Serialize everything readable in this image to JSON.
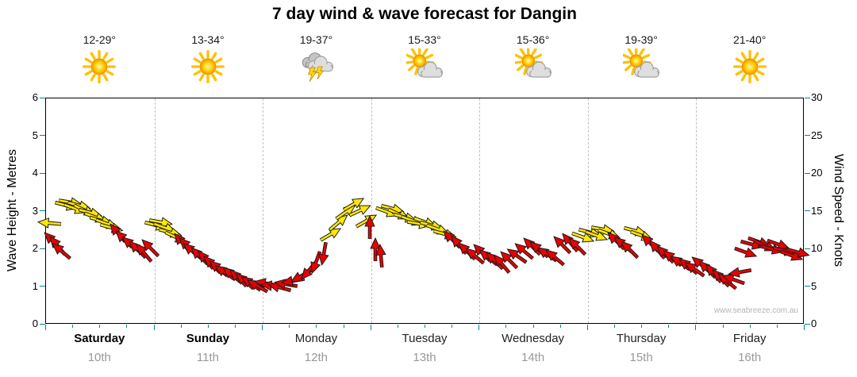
{
  "title": "7 day wind & wave forecast for Dangin",
  "watermark": "www.seabreeze.com.au",
  "days": [
    {
      "name": "Saturday",
      "date": "10th",
      "temp": "12-29°",
      "icon": "sunny",
      "bold": true
    },
    {
      "name": "Sunday",
      "date": "11th",
      "temp": "13-34°",
      "icon": "sunny",
      "bold": true
    },
    {
      "name": "Monday",
      "date": "12th",
      "temp": "19-37°",
      "icon": "thunderstorm",
      "bold": false
    },
    {
      "name": "Tuesday",
      "date": "13th",
      "temp": "15-33°",
      "icon": "partly-cloudy",
      "bold": false
    },
    {
      "name": "Wednesday",
      "date": "14th",
      "temp": "15-36°",
      "icon": "partly-cloudy",
      "bold": false
    },
    {
      "name": "Thursday",
      "date": "15th",
      "temp": "19-39°",
      "icon": "partly-cloudy",
      "bold": false
    },
    {
      "name": "Friday",
      "date": "16th",
      "temp": "21-40°",
      "icon": "sunny",
      "bold": false
    }
  ],
  "chart_data": {
    "type": "scatter",
    "subtype": "wind-direction-arrows",
    "title": "7 day wind & wave forecast for Dangin",
    "x_axis": {
      "days": 7,
      "labels": [
        "Saturday",
        "Sunday",
        "Monday",
        "Tuesday",
        "Wednesday",
        "Thursday",
        "Friday"
      ],
      "dates": [
        "10th",
        "11th",
        "12th",
        "13th",
        "14th",
        "15th",
        "16th"
      ]
    },
    "y_left": {
      "label": "Wave Height - Metres",
      "range": [
        0,
        6
      ],
      "ticks": [
        0,
        1,
        2,
        3,
        4,
        5,
        6
      ]
    },
    "y_right": {
      "label": "Wind Speed - Knots",
      "range": [
        0,
        30
      ],
      "ticks": [
        0,
        5,
        10,
        15,
        20,
        25,
        30
      ]
    },
    "grid": "dashed vertical day separators",
    "arrow_colors": {
      "y": "#ffe800",
      "r": "#e80000"
    },
    "arrow_fields": [
      "day_position_0to7",
      "wind_speed_knots",
      "direction_deg_cw_from_east",
      "color_key"
    ],
    "arrows": [
      [
        0.03,
        13.5,
        185,
        "y"
      ],
      [
        0.06,
        11.2,
        225,
        "r"
      ],
      [
        0.1,
        10.5,
        230,
        "r"
      ],
      [
        0.14,
        9.8,
        220,
        "r"
      ],
      [
        0.19,
        15.8,
        15,
        "y"
      ],
      [
        0.23,
        16.2,
        10,
        "y"
      ],
      [
        0.27,
        15.4,
        20,
        "y"
      ],
      [
        0.31,
        15.8,
        15,
        "y"
      ],
      [
        0.36,
        15.2,
        25,
        "y"
      ],
      [
        0.41,
        14.8,
        15,
        "y"
      ],
      [
        0.46,
        14.2,
        20,
        "y"
      ],
      [
        0.51,
        13.8,
        15,
        "y"
      ],
      [
        0.56,
        13.4,
        20,
        "y"
      ],
      [
        0.61,
        12.8,
        15,
        "y"
      ],
      [
        0.66,
        12.2,
        230,
        "r"
      ],
      [
        0.72,
        11.4,
        225,
        "r"
      ],
      [
        0.78,
        10.6,
        220,
        "r"
      ],
      [
        0.84,
        10.0,
        225,
        "r"
      ],
      [
        0.9,
        9.6,
        230,
        "r"
      ],
      [
        0.96,
        10.2,
        225,
        "r"
      ],
      [
        1.02,
        13.2,
        15,
        "y"
      ],
      [
        1.06,
        13.6,
        10,
        "y"
      ],
      [
        1.1,
        12.8,
        20,
        "y"
      ],
      [
        1.15,
        12.2,
        15,
        "y"
      ],
      [
        1.2,
        11.6,
        25,
        "y"
      ],
      [
        1.25,
        11.0,
        230,
        "r"
      ],
      [
        1.3,
        10.4,
        225,
        "r"
      ],
      [
        1.35,
        9.8,
        220,
        "r"
      ],
      [
        1.41,
        9.2,
        225,
        "r"
      ],
      [
        1.47,
        8.6,
        230,
        "r"
      ],
      [
        1.53,
        8.0,
        225,
        "r"
      ],
      [
        1.59,
        7.5,
        220,
        "r"
      ],
      [
        1.65,
        7.0,
        215,
        "r"
      ],
      [
        1.71,
        6.6,
        220,
        "r"
      ],
      [
        1.77,
        6.2,
        225,
        "r"
      ],
      [
        1.83,
        5.8,
        220,
        "r"
      ],
      [
        1.89,
        5.5,
        215,
        "r"
      ],
      [
        1.95,
        5.2,
        210,
        "r"
      ],
      [
        2.03,
        5.5,
        190,
        "r"
      ],
      [
        2.09,
        5.2,
        185,
        "r"
      ],
      [
        2.15,
        5.0,
        195,
        "r"
      ],
      [
        2.21,
        5.4,
        190,
        "r"
      ],
      [
        2.28,
        5.8,
        170,
        "r"
      ],
      [
        2.35,
        6.4,
        150,
        "r"
      ],
      [
        2.42,
        7.2,
        130,
        "r"
      ],
      [
        2.49,
        8.2,
        110,
        "r"
      ],
      [
        2.56,
        9.4,
        100,
        "r"
      ],
      [
        2.63,
        12.0,
        330,
        "y"
      ],
      [
        2.7,
        13.6,
        320,
        "y"
      ],
      [
        2.77,
        15.0,
        325,
        "y"
      ],
      [
        2.84,
        16.0,
        330,
        "y"
      ],
      [
        2.9,
        15.2,
        335,
        "y"
      ],
      [
        2.96,
        13.8,
        330,
        "y"
      ],
      [
        2.99,
        13.0,
        270,
        "r"
      ],
      [
        3.04,
        10.0,
        270,
        "r"
      ],
      [
        3.09,
        9.2,
        265,
        "r"
      ],
      [
        3.15,
        15.0,
        20,
        "y"
      ],
      [
        3.2,
        15.4,
        15,
        "y"
      ],
      [
        3.26,
        14.6,
        25,
        "y"
      ],
      [
        3.32,
        14.2,
        15,
        "y"
      ],
      [
        3.38,
        13.8,
        20,
        "y"
      ],
      [
        3.44,
        13.4,
        10,
        "y"
      ],
      [
        3.5,
        13.6,
        20,
        "y"
      ],
      [
        3.56,
        13.2,
        15,
        "y"
      ],
      [
        3.62,
        12.6,
        20,
        "y"
      ],
      [
        3.68,
        12.0,
        15,
        "y"
      ],
      [
        3.74,
        11.4,
        225,
        "r"
      ],
      [
        3.81,
        10.6,
        230,
        "r"
      ],
      [
        3.88,
        9.8,
        225,
        "r"
      ],
      [
        3.95,
        9.2,
        220,
        "r"
      ],
      [
        4.02,
        9.6,
        225,
        "r"
      ],
      [
        4.08,
        9.0,
        220,
        "r"
      ],
      [
        4.14,
        8.5,
        225,
        "r"
      ],
      [
        4.2,
        8.1,
        230,
        "r"
      ],
      [
        4.27,
        8.6,
        225,
        "r"
      ],
      [
        4.34,
        9.2,
        215,
        "r"
      ],
      [
        4.41,
        9.8,
        220,
        "r"
      ],
      [
        4.48,
        10.4,
        225,
        "r"
      ],
      [
        4.55,
        10.0,
        220,
        "r"
      ],
      [
        4.62,
        9.4,
        215,
        "r"
      ],
      [
        4.69,
        9.0,
        220,
        "r"
      ],
      [
        4.76,
        10.6,
        225,
        "r"
      ],
      [
        4.83,
        11.0,
        230,
        "r"
      ],
      [
        4.9,
        10.4,
        225,
        "r"
      ],
      [
        4.96,
        11.6,
        20,
        "y"
      ],
      [
        5.02,
        12.2,
        15,
        "y"
      ],
      [
        5.08,
        11.8,
        20,
        "y"
      ],
      [
        5.14,
        12.6,
        10,
        "y"
      ],
      [
        5.2,
        12.0,
        20,
        "y"
      ],
      [
        5.26,
        11.2,
        225,
        "r"
      ],
      [
        5.32,
        10.6,
        220,
        "r"
      ],
      [
        5.38,
        10.0,
        225,
        "r"
      ],
      [
        5.44,
        12.4,
        15,
        "y"
      ],
      [
        5.5,
        11.8,
        20,
        "y"
      ],
      [
        5.57,
        10.8,
        225,
        "r"
      ],
      [
        5.64,
        10.0,
        230,
        "r"
      ],
      [
        5.71,
        9.4,
        225,
        "r"
      ],
      [
        5.78,
        8.8,
        220,
        "r"
      ],
      [
        5.85,
        8.2,
        215,
        "r"
      ],
      [
        5.92,
        7.8,
        220,
        "r"
      ],
      [
        5.98,
        7.4,
        215,
        "r"
      ],
      [
        6.04,
        8.0,
        220,
        "r"
      ],
      [
        6.1,
        7.4,
        225,
        "r"
      ],
      [
        6.16,
        6.8,
        230,
        "r"
      ],
      [
        6.22,
        6.2,
        225,
        "r"
      ],
      [
        6.28,
        5.8,
        220,
        "r"
      ],
      [
        6.34,
        6.0,
        200,
        "r"
      ],
      [
        6.4,
        7.0,
        170,
        "r"
      ],
      [
        6.46,
        9.6,
        20,
        "r"
      ],
      [
        6.52,
        10.6,
        15,
        "r"
      ],
      [
        6.58,
        11.0,
        20,
        "r"
      ],
      [
        6.64,
        10.4,
        25,
        "r"
      ],
      [
        6.7,
        10.0,
        15,
        "r"
      ],
      [
        6.76,
        10.6,
        20,
        "r"
      ],
      [
        6.82,
        9.8,
        15,
        "r"
      ],
      [
        6.88,
        9.2,
        20,
        "r"
      ],
      [
        6.94,
        9.6,
        15,
        "r"
      ]
    ]
  }
}
